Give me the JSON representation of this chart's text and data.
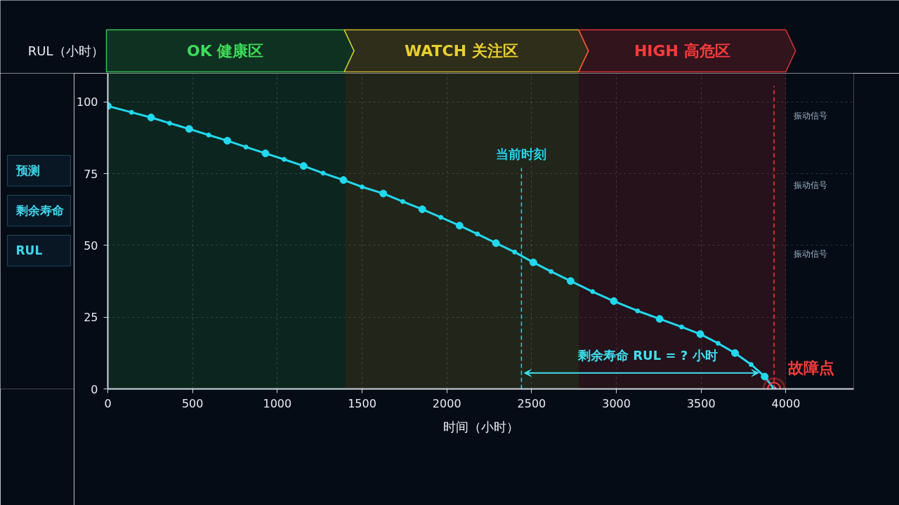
{
  "chart_data": {
    "type": "line",
    "xlabel": "时间（小时）",
    "ylabel": "RUL（小时）",
    "x": [
      0,
      140,
      255,
      365,
      480,
      595,
      705,
      815,
      930,
      1040,
      1155,
      1270,
      1390,
      1500,
      1625,
      1740,
      1855,
      1965,
      2075,
      2180,
      2290,
      2400,
      2510,
      2615,
      2730,
      2860,
      2985,
      3125,
      3255,
      3385,
      3495,
      3600,
      3700,
      3795,
      3875,
      3930
    ],
    "series": [
      {
        "color": "#22d8ee",
        "values": [
          98.6,
          96.4,
          94.6,
          92.6,
          90.6,
          88.5,
          86.5,
          84.3,
          82.1,
          80.0,
          77.7,
          75.2,
          72.8,
          70.4,
          68.1,
          65.3,
          62.6,
          59.8,
          56.9,
          54.0,
          50.8,
          47.7,
          44.1,
          40.9,
          37.6,
          33.9,
          30.6,
          27.2,
          24.4,
          21.6,
          19.1,
          15.9,
          12.5,
          8.5,
          4.3,
          0
        ]
      }
    ],
    "xlim": [
      0,
      4400
    ],
    "ylim": [
      0,
      110
    ],
    "xticks": [
      0,
      500,
      1000,
      1500,
      2000,
      2500,
      3000,
      3500,
      4000
    ],
    "yticks": [
      0,
      25,
      50,
      75,
      100
    ],
    "grid": true,
    "marker": "circle",
    "line_style": "solid",
    "bands": [
      {
        "axis": "x",
        "from": 0,
        "to": 1400,
        "label": "OK 健康区",
        "color": "#3ddc5a"
      },
      {
        "axis": "x",
        "from": 1400,
        "to": 2780,
        "label": "WATCH 关注区",
        "color": "#e8cf2e"
      },
      {
        "axis": "x",
        "from": 2780,
        "to": 4000,
        "label": "HIGH 高危区",
        "color": "#ff3b3b"
      }
    ],
    "ref_lines": [
      {
        "axis": "x",
        "value": 2440,
        "label": "当前时刻",
        "color": "#22d8ee",
        "line_style": "dashed"
      },
      {
        "axis": "x",
        "value": 3930,
        "label": "故障点",
        "color": "#ff3b3b",
        "line_style": "dashed"
      }
    ],
    "annotations": [
      "预测",
      "剩余寿命",
      "RUL",
      "振动信号",
      "振动信号",
      "振动信号",
      "剩余寿命 RUL = ? 小时"
    ]
  }
}
